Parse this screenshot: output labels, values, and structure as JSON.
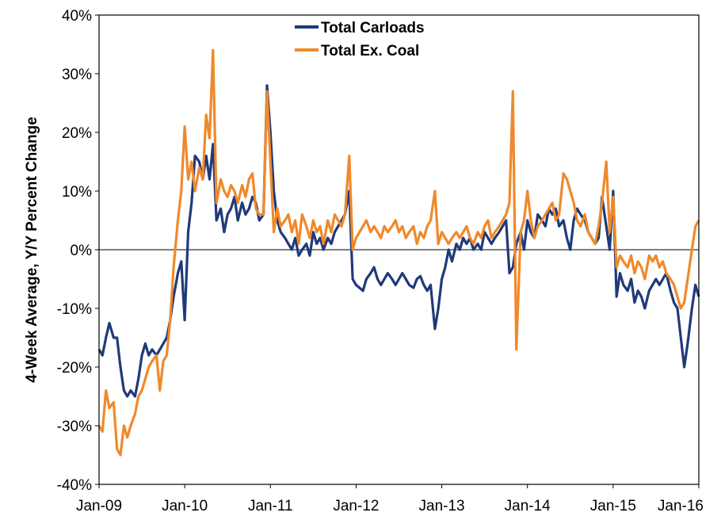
{
  "chart_data": {
    "type": "line",
    "title": "",
    "xlabel": "",
    "ylabel": "4-Week Average, Y/Y Percent Change",
    "ylim": [
      -40,
      40
    ],
    "xlim": [
      "Jan-09",
      "Jan-16"
    ],
    "y_ticks": [
      "40%",
      "30%",
      "20%",
      "10%",
      "0%",
      "-10%",
      "-20%",
      "-30%",
      "-40%"
    ],
    "x_ticks": [
      "Jan-09",
      "Jan-10",
      "Jan-11",
      "Jan-12",
      "Jan-13",
      "Jan-14",
      "Jan-15",
      "Jan-16"
    ],
    "legend_position": "top-center",
    "grid": false,
    "series": [
      {
        "name": "Total Carloads",
        "color": "#1f3a7a",
        "x": [
          2009.0,
          2009.04,
          2009.08,
          2009.12,
          2009.17,
          2009.21,
          2009.25,
          2009.29,
          2009.33,
          2009.37,
          2009.42,
          2009.46,
          2009.5,
          2009.54,
          2009.58,
          2009.62,
          2009.67,
          2009.71,
          2009.75,
          2009.79,
          2009.83,
          2009.87,
          2009.92,
          2009.96,
          2010.0,
          2010.04,
          2010.08,
          2010.12,
          2010.17,
          2010.21,
          2010.25,
          2010.29,
          2010.33,
          2010.37,
          2010.42,
          2010.46,
          2010.5,
          2010.54,
          2010.58,
          2010.62,
          2010.67,
          2010.71,
          2010.75,
          2010.79,
          2010.83,
          2010.87,
          2010.92,
          2010.96,
          2011.0,
          2011.04,
          2011.08,
          2011.12,
          2011.17,
          2011.21,
          2011.25,
          2011.29,
          2011.33,
          2011.37,
          2011.42,
          2011.46,
          2011.5,
          2011.54,
          2011.58,
          2011.62,
          2011.67,
          2011.71,
          2011.75,
          2011.79,
          2011.83,
          2011.87,
          2011.92,
          2011.96,
          2012.0,
          2012.04,
          2012.08,
          2012.12,
          2012.17,
          2012.21,
          2012.25,
          2012.29,
          2012.33,
          2012.37,
          2012.42,
          2012.46,
          2012.5,
          2012.54,
          2012.58,
          2012.62,
          2012.67,
          2012.71,
          2012.75,
          2012.79,
          2012.83,
          2012.87,
          2012.92,
          2012.96,
          2013.0,
          2013.04,
          2013.08,
          2013.12,
          2013.17,
          2013.21,
          2013.25,
          2013.29,
          2013.33,
          2013.37,
          2013.42,
          2013.46,
          2013.5,
          2013.54,
          2013.58,
          2013.62,
          2013.67,
          2013.71,
          2013.75,
          2013.79,
          2013.83,
          2013.87,
          2013.92,
          2013.96,
          2014.0,
          2014.04,
          2014.08,
          2014.12,
          2014.17,
          2014.21,
          2014.25,
          2014.29,
          2014.33,
          2014.37,
          2014.42,
          2014.46,
          2014.5,
          2014.54,
          2014.58,
          2014.62,
          2014.67,
          2014.71,
          2014.75,
          2014.79,
          2014.83,
          2014.87,
          2014.92,
          2014.96,
          2015.0,
          2015.04,
          2015.08,
          2015.12,
          2015.17,
          2015.21,
          2015.25,
          2015.29,
          2015.33,
          2015.37,
          2015.42,
          2015.46,
          2015.5,
          2015.54,
          2015.58,
          2015.62,
          2015.67,
          2015.71,
          2015.75,
          2015.79,
          2015.83,
          2015.87,
          2015.92,
          2015.96,
          2016.0
        ],
        "values": [
          -17,
          -18,
          -15,
          -12.5,
          -15,
          -15,
          -20,
          -24,
          -25,
          -24,
          -25,
          -22,
          -18,
          -16,
          -18,
          -17,
          -18,
          -17,
          -16,
          -15,
          -12,
          -8,
          -4,
          -2,
          -12,
          3,
          8,
          16,
          15,
          12,
          16,
          12,
          18,
          5,
          7,
          3,
          6,
          7,
          9,
          5,
          8,
          6,
          7,
          9,
          8,
          5,
          6,
          28,
          20,
          10,
          5,
          3,
          2,
          1,
          0,
          2,
          -1,
          0,
          1,
          -1,
          3,
          1,
          2,
          0,
          2,
          1,
          3,
          4,
          5,
          6,
          10,
          -5,
          -6,
          -6.5,
          -7,
          -5,
          -4,
          -3,
          -5,
          -6,
          -5,
          -4,
          -5,
          -6,
          -5,
          -4,
          -5,
          -6,
          -6.5,
          -5,
          -4.5,
          -6,
          -7,
          -6,
          -13.5,
          -10,
          -5,
          -3,
          0,
          -2,
          1,
          0,
          2,
          1,
          2,
          0,
          1,
          0,
          3,
          2,
          1,
          2,
          3,
          4,
          5,
          -4,
          -3,
          1,
          3,
          0,
          5,
          3,
          2,
          6,
          5,
          4,
          7,
          6,
          7,
          4,
          5,
          2,
          0,
          5,
          7,
          6,
          5,
          3,
          2,
          1,
          2,
          9,
          4,
          0,
          10,
          -8,
          -4,
          -6,
          -7,
          -5,
          -9,
          -7,
          -8,
          -10,
          -7,
          -6,
          -5,
          -6,
          -5,
          -4,
          -7,
          -9,
          -10,
          -15,
          -20,
          -16,
          -10,
          -6,
          -8
        ]
      },
      {
        "name": "Total Ex. Coal",
        "color": "#f0892b",
        "x": [
          2009.0,
          2009.04,
          2009.08,
          2009.12,
          2009.17,
          2009.21,
          2009.25,
          2009.29,
          2009.33,
          2009.37,
          2009.42,
          2009.46,
          2009.5,
          2009.54,
          2009.58,
          2009.62,
          2009.67,
          2009.71,
          2009.75,
          2009.79,
          2009.83,
          2009.87,
          2009.92,
          2009.96,
          2010.0,
          2010.04,
          2010.08,
          2010.12,
          2010.17,
          2010.21,
          2010.25,
          2010.29,
          2010.33,
          2010.37,
          2010.42,
          2010.46,
          2010.5,
          2010.54,
          2010.58,
          2010.62,
          2010.67,
          2010.71,
          2010.75,
          2010.79,
          2010.83,
          2010.87,
          2010.92,
          2010.96,
          2011.0,
          2011.04,
          2011.08,
          2011.12,
          2011.17,
          2011.21,
          2011.25,
          2011.29,
          2011.33,
          2011.37,
          2011.42,
          2011.46,
          2011.5,
          2011.54,
          2011.58,
          2011.62,
          2011.67,
          2011.71,
          2011.75,
          2011.79,
          2011.83,
          2011.87,
          2011.92,
          2011.96,
          2012.0,
          2012.04,
          2012.08,
          2012.12,
          2012.17,
          2012.21,
          2012.25,
          2012.29,
          2012.33,
          2012.37,
          2012.42,
          2012.46,
          2012.5,
          2012.54,
          2012.58,
          2012.62,
          2012.67,
          2012.71,
          2012.75,
          2012.79,
          2012.83,
          2012.87,
          2012.92,
          2012.96,
          2013.0,
          2013.04,
          2013.08,
          2013.12,
          2013.17,
          2013.21,
          2013.25,
          2013.29,
          2013.33,
          2013.37,
          2013.42,
          2013.46,
          2013.5,
          2013.54,
          2013.58,
          2013.62,
          2013.67,
          2013.71,
          2013.75,
          2013.79,
          2013.83,
          2013.87,
          2013.92,
          2013.96,
          2014.0,
          2014.04,
          2014.08,
          2014.12,
          2014.17,
          2014.21,
          2014.25,
          2014.29,
          2014.33,
          2014.37,
          2014.42,
          2014.46,
          2014.5,
          2014.54,
          2014.58,
          2014.62,
          2014.67,
          2014.71,
          2014.75,
          2014.79,
          2014.83,
          2014.87,
          2014.92,
          2014.96,
          2015.0,
          2015.04,
          2015.08,
          2015.12,
          2015.17,
          2015.21,
          2015.25,
          2015.29,
          2015.33,
          2015.37,
          2015.42,
          2015.46,
          2015.5,
          2015.54,
          2015.58,
          2015.62,
          2015.67,
          2015.71,
          2015.75,
          2015.79,
          2015.83,
          2015.87,
          2015.92,
          2015.96,
          2016.0
        ],
        "values": [
          -30,
          -31,
          -24,
          -27,
          -26,
          -34,
          -35,
          -30,
          -32,
          -30,
          -28,
          -25,
          -24,
          -22,
          -20,
          -19,
          -18,
          -24,
          -19,
          -18,
          -12,
          -3,
          5,
          10,
          21,
          12,
          15,
          10,
          14,
          12,
          23,
          19,
          34,
          8,
          12,
          10,
          9,
          11,
          10,
          8,
          11,
          9,
          12,
          13,
          7,
          6,
          6,
          27,
          15,
          3,
          7,
          4,
          5,
          6,
          3,
          5,
          1,
          6,
          4,
          2,
          5,
          3,
          4,
          1,
          5,
          3,
          6,
          5,
          4,
          6,
          16,
          0,
          2,
          3,
          4,
          5,
          3,
          4,
          3,
          2,
          4,
          3,
          4,
          5,
          3,
          4,
          2,
          3,
          4,
          1,
          3,
          2,
          4,
          5,
          10,
          1,
          3,
          2,
          1,
          2,
          3,
          2,
          3,
          4,
          2,
          1,
          3,
          2,
          4,
          5,
          2,
          3,
          4,
          5,
          6,
          8,
          27,
          -17,
          3,
          5,
          10,
          5,
          2,
          4,
          5,
          6,
          7,
          8,
          5,
          6,
          13,
          12,
          10,
          8,
          5,
          4,
          6,
          3,
          2,
          1,
          4,
          8,
          15,
          3,
          9,
          -3,
          -1,
          -2,
          -3,
          -1,
          -4,
          -2,
          -3,
          -5,
          -1,
          -2,
          -1,
          -3,
          -2,
          -4,
          -5,
          -6,
          -8,
          -10,
          -9,
          -5,
          0,
          4,
          5
        ]
      }
    ]
  }
}
